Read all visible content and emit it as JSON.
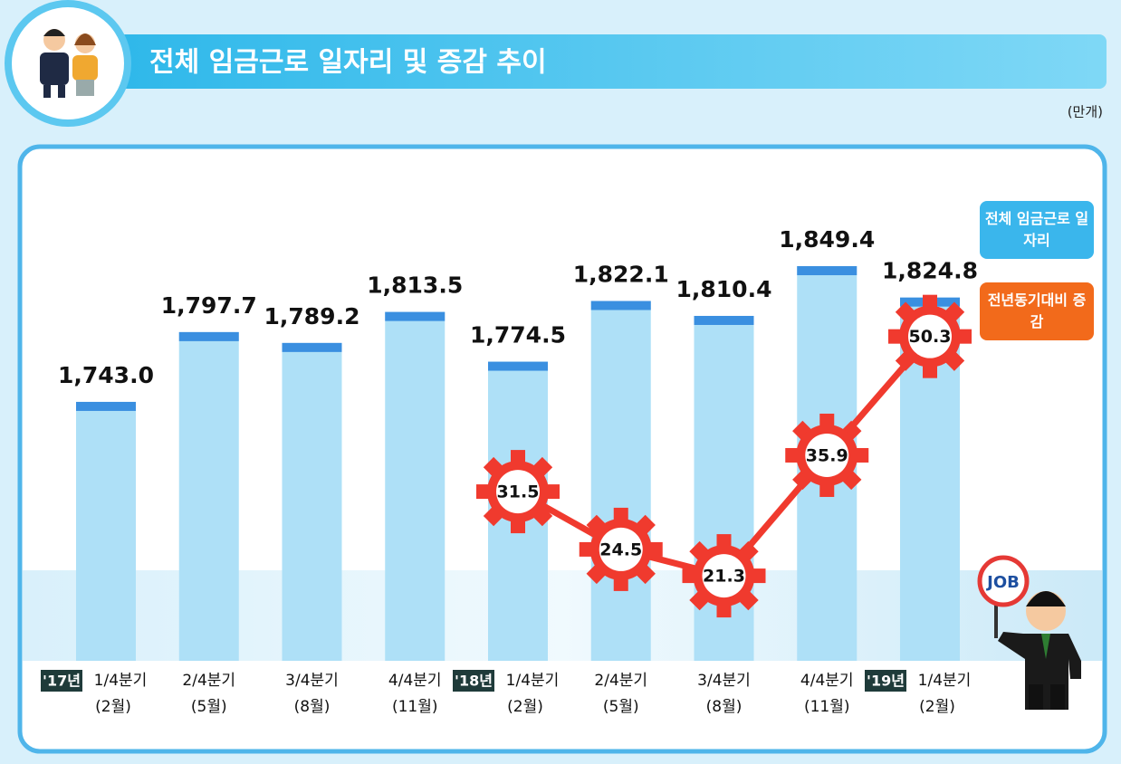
{
  "chart_data": {
    "type": "bar_line",
    "title": "전체 임금근로 일자리 및 증감 추이",
    "unit": "(만개)",
    "categories": [
      "1/4분기",
      "2/4분기",
      "3/4분기",
      "4/4분기",
      "1/4분기",
      "2/4분기",
      "3/4분기",
      "4/4분기",
      "1/4분기"
    ],
    "months": [
      "(2월)",
      "(5월)",
      "(8월)",
      "(11월)",
      "(2월)",
      "(5월)",
      "(8월)",
      "(11월)",
      "(2월)"
    ],
    "year_tags": [
      "'17년",
      null,
      null,
      null,
      "'18년",
      null,
      null,
      null,
      "'19년"
    ],
    "series": [
      {
        "name": "전체 임금근로 일자리",
        "color": "#3a8fe0",
        "type": "bar",
        "values": [
          1743.0,
          1797.7,
          1789.2,
          1813.5,
          1774.5,
          1822.1,
          1810.4,
          1849.4,
          1824.8
        ],
        "value_labels": [
          "1,743.0",
          "1,797.7",
          "1,789.2",
          "1,813.5",
          "1,774.5",
          "1,822.1",
          "1,810.4",
          "1,849.4",
          "1,824.8"
        ]
      },
      {
        "name": "전년동기대비 증감",
        "color": "#f03a2e",
        "type": "line",
        "axis": "y2",
        "values": [
          null,
          null,
          null,
          null,
          31.5,
          24.5,
          21.3,
          35.9,
          50.3
        ]
      }
    ],
    "ylim": [
      1540,
      1870
    ],
    "y2lim": [
      11,
      62
    ],
    "badge": "JOB"
  }
}
